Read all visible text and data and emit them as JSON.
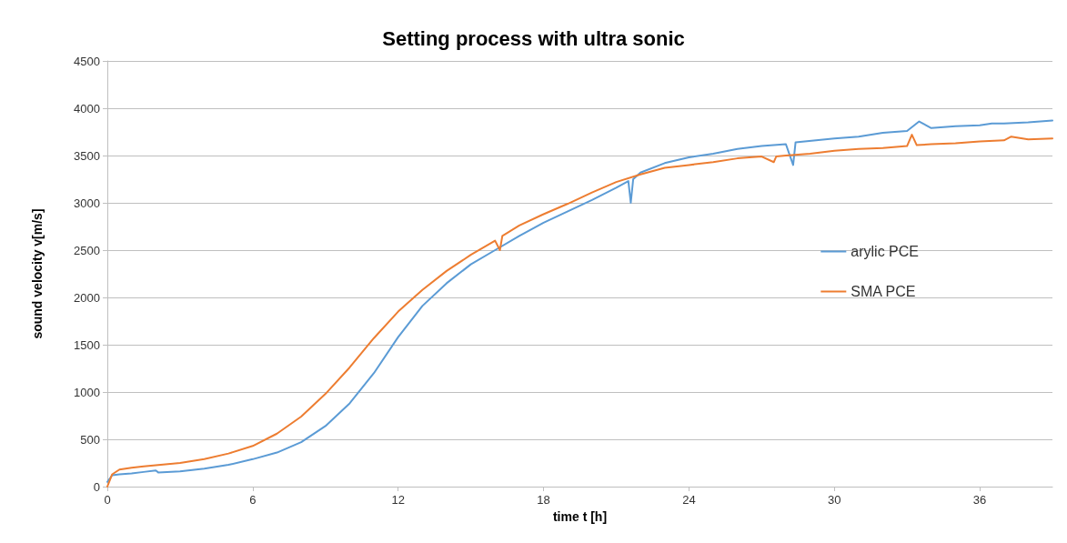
{
  "chart_data": {
    "type": "line",
    "title": "Setting process with ultra sonic",
    "xlabel": "time t [h]",
    "ylabel": "sound velocity v[m/s]",
    "xlim": [
      0,
      39
    ],
    "xticks": [
      0,
      6,
      12,
      18,
      24,
      30,
      36
    ],
    "ylim": [
      0,
      4500
    ],
    "yticks": [
      0,
      500,
      1000,
      1500,
      2000,
      2500,
      3000,
      3500,
      4000,
      4500
    ],
    "grid": "y",
    "legend": "right",
    "marker": "none",
    "line_style": "solid",
    "series": [
      {
        "name": "arylic PCE",
        "color": "#5b9bd5",
        "x": [
          0,
          0.2,
          0.5,
          1,
          1.5,
          2,
          2.1,
          3,
          4,
          5,
          6,
          7,
          8,
          9,
          10,
          11,
          12,
          13,
          14,
          15,
          16,
          17,
          18,
          19,
          20,
          21,
          21.5,
          21.6,
          21.7,
          22,
          23,
          24,
          25,
          26,
          27,
          28,
          28.3,
          28.4,
          30,
          31,
          32,
          33,
          33.5,
          34,
          35,
          36,
          36.5,
          37,
          38,
          39
        ],
        "values": [
          50,
          120,
          130,
          140,
          155,
          170,
          150,
          160,
          190,
          230,
          290,
          360,
          470,
          640,
          880,
          1200,
          1580,
          1910,
          2150,
          2350,
          2500,
          2650,
          2790,
          2910,
          3030,
          3160,
          3230,
          3000,
          3250,
          3320,
          3420,
          3480,
          3520,
          3570,
          3600,
          3620,
          3400,
          3640,
          3680,
          3700,
          3740,
          3760,
          3860,
          3790,
          3810,
          3820,
          3840,
          3840,
          3850,
          3870
        ]
      },
      {
        "name": "SMA PCE",
        "color": "#ed7d31",
        "x": [
          0,
          0.2,
          0.5,
          1,
          1.5,
          2,
          3,
          4,
          5,
          6,
          7,
          8,
          9,
          10,
          11,
          12,
          13,
          14,
          15,
          16,
          16.2,
          16.3,
          17,
          18,
          19,
          20,
          21,
          22,
          23,
          24,
          25,
          26,
          27,
          27.5,
          27.6,
          28,
          29,
          30,
          31,
          32,
          33,
          33.2,
          33.4,
          34,
          35,
          36,
          37,
          37.3,
          38,
          39
        ],
        "values": [
          0,
          130,
          180,
          200,
          215,
          225,
          250,
          290,
          350,
          430,
          560,
          740,
          980,
          1260,
          1570,
          1850,
          2080,
          2280,
          2450,
          2600,
          2500,
          2650,
          2760,
          2880,
          2990,
          3110,
          3220,
          3300,
          3370,
          3400,
          3430,
          3470,
          3490,
          3430,
          3490,
          3500,
          3520,
          3550,
          3570,
          3580,
          3600,
          3720,
          3610,
          3620,
          3630,
          3650,
          3660,
          3700,
          3670,
          3680
        ]
      }
    ]
  }
}
